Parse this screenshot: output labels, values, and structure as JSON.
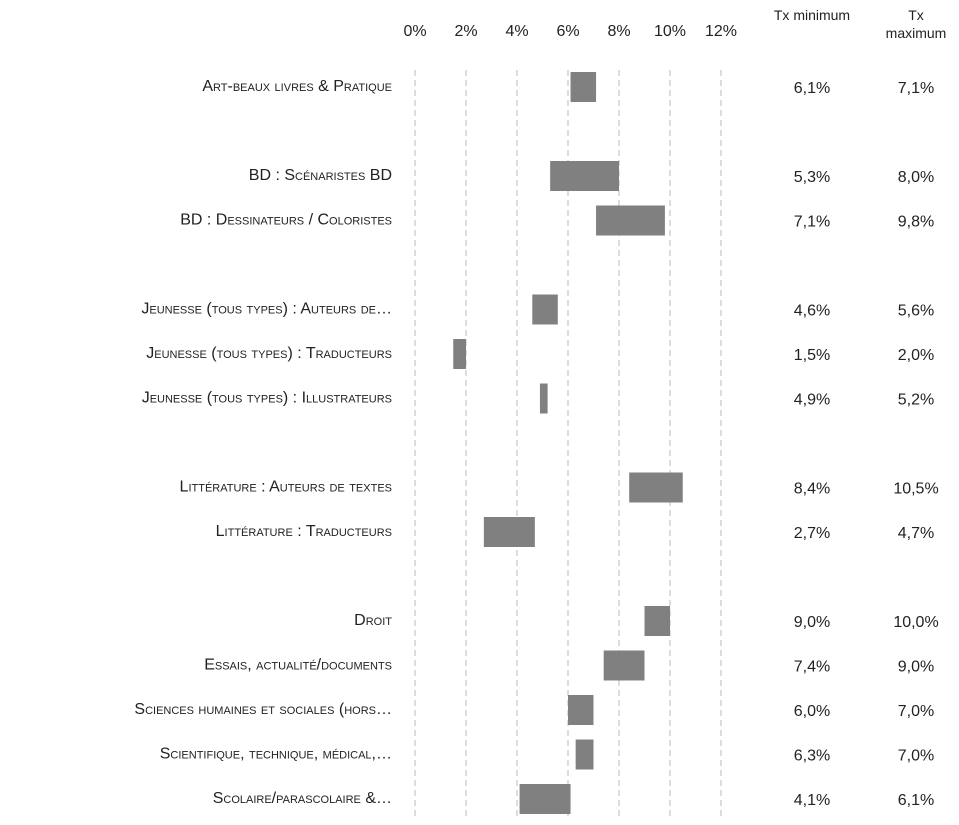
{
  "chart_data": {
    "type": "range_bar",
    "categories": [
      "Art-beaux livres & Pratique",
      null,
      "BD : Scénaristes BD",
      "BD : Dessinateurs / Coloristes",
      null,
      "Jeunesse (tous types) : Auteurs de…",
      "Jeunesse (tous types) : Traducteurs",
      "Jeunesse (tous types) : Illustrateurs",
      null,
      "Littérature : Auteurs de textes",
      "Littérature : Traducteurs",
      null,
      "Droit",
      "Essais, actualité/documents",
      "Sciences humaines et sociales (hors…",
      "Scientifique, technique, médical,…",
      "Scolaire/parascolaire &…"
    ],
    "series": [
      {
        "name": "Tx minimum",
        "color": "#808080",
        "values": [
          6.1,
          null,
          5.3,
          7.1,
          null,
          4.6,
          1.5,
          4.9,
          null,
          8.4,
          2.7,
          null,
          9.0,
          7.4,
          6.0,
          6.3,
          4.1
        ],
        "value_labels": [
          "6,1%",
          null,
          "5,3%",
          "7,1%",
          null,
          "4,6%",
          "1,5%",
          "4,9%",
          null,
          "8,4%",
          "2,7%",
          null,
          "9,0%",
          "7,4%",
          "6,0%",
          "6,3%",
          "4,1%"
        ]
      },
      {
        "name": "Tx maximum",
        "color": "#808080",
        "values": [
          7.1,
          null,
          8.0,
          9.8,
          null,
          5.6,
          2.0,
          5.2,
          null,
          10.5,
          4.7,
          null,
          10.0,
          9.0,
          7.0,
          7.0,
          6.1
        ],
        "value_labels": [
          "7,1%",
          null,
          "8,0%",
          "9,8%",
          null,
          "5,6%",
          "2,0%",
          "5,2%",
          null,
          "10,5%",
          "4,7%",
          null,
          "10,0%",
          "9,0%",
          "7,0%",
          "7,0%",
          "6,1%"
        ]
      }
    ],
    "xlim": [
      0,
      12
    ],
    "xticks": [
      {
        "value": 0,
        "label": "0%"
      },
      {
        "value": 2,
        "label": "2%"
      },
      {
        "value": 4,
        "label": "4%"
      },
      {
        "value": 6,
        "label": "6%"
      },
      {
        "value": 8,
        "label": "8%"
      },
      {
        "value": 10,
        "label": "10%"
      },
      {
        "value": 12,
        "label": "12%"
      }
    ],
    "grid": true
  }
}
